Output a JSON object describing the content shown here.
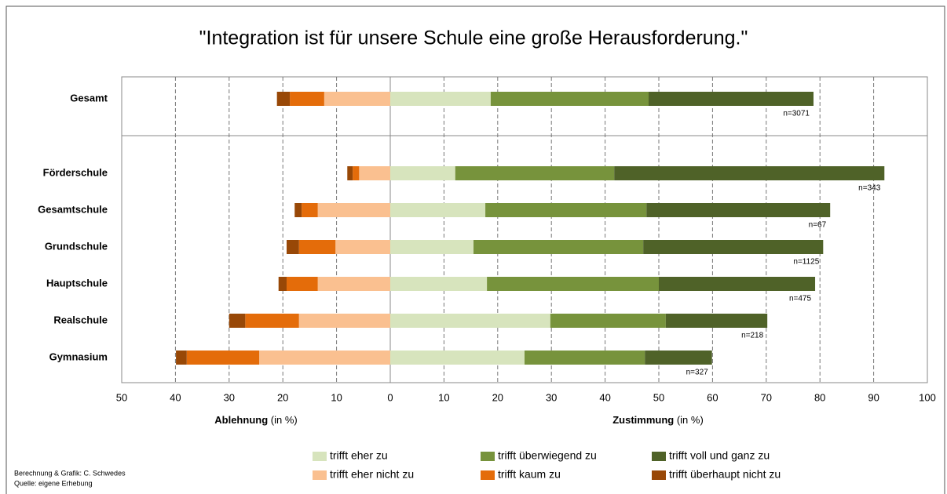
{
  "chart_data": {
    "type": "diverging_bar",
    "title": "\"Integration ist für unsere Schule eine große Herausforderung.\"",
    "categories": [
      "Gesamt",
      "Förderschule",
      "Gesamtschule",
      "Grundschule",
      "Hauptschule",
      "Realschule",
      "Gymnasium"
    ],
    "series": [
      {
        "name": "trifft eher zu",
        "color": "#d7e4bd",
        "values": [
          18.7,
          12.1,
          17.7,
          15.5,
          18.0,
          29.8,
          25.0
        ]
      },
      {
        "name": "trifft überwiegend zu",
        "color": "#77933c",
        "values": [
          29.4,
          29.6,
          30.0,
          31.6,
          32.0,
          21.5,
          22.4
        ]
      },
      {
        "name": "trifft voll und ganz zu",
        "color": "#4f6228",
        "values": [
          30.7,
          50.3,
          34.2,
          33.5,
          29.1,
          18.9,
          12.5
        ]
      },
      {
        "name": "trifft eher nicht zu",
        "color": "#fac090",
        "values": [
          -12.3,
          -5.8,
          -13.5,
          -10.2,
          -13.5,
          -17.0,
          -24.4
        ]
      },
      {
        "name": "trifft kaum zu",
        "color": "#e46c0a",
        "values": [
          -6.4,
          -1.2,
          -3.0,
          -6.8,
          -5.8,
          -10.0,
          -13.5
        ]
      },
      {
        "name": "trifft überhaupt nicht zu",
        "color": "#984807",
        "values": [
          -2.4,
          -1.0,
          -1.3,
          -2.3,
          -1.5,
          -3.0,
          -2.0
        ]
      }
    ],
    "n_labels": [
      "n=3071",
      "n=343",
      "n=67",
      "n=1125",
      "n=475",
      "n=218",
      "n=327"
    ],
    "xlim": [
      -50,
      100
    ],
    "xticks": [
      {
        "value": -50,
        "label": "50"
      },
      {
        "value": -40,
        "label": "40"
      },
      {
        "value": -30,
        "label": "30"
      },
      {
        "value": -20,
        "label": "20"
      },
      {
        "value": -10,
        "label": "10"
      },
      0,
      10,
      20,
      30,
      40,
      50,
      60,
      70,
      80,
      90,
      100
    ],
    "xlabel_left": [
      "Ablehnung",
      "(in %)"
    ],
    "xlabel_right": [
      "Zustimmung",
      "(in %)"
    ],
    "grid": true,
    "source": [
      "Berechnung & Grafik: C. Schwedes",
      "Quelle: eigene Erhebung"
    ]
  }
}
